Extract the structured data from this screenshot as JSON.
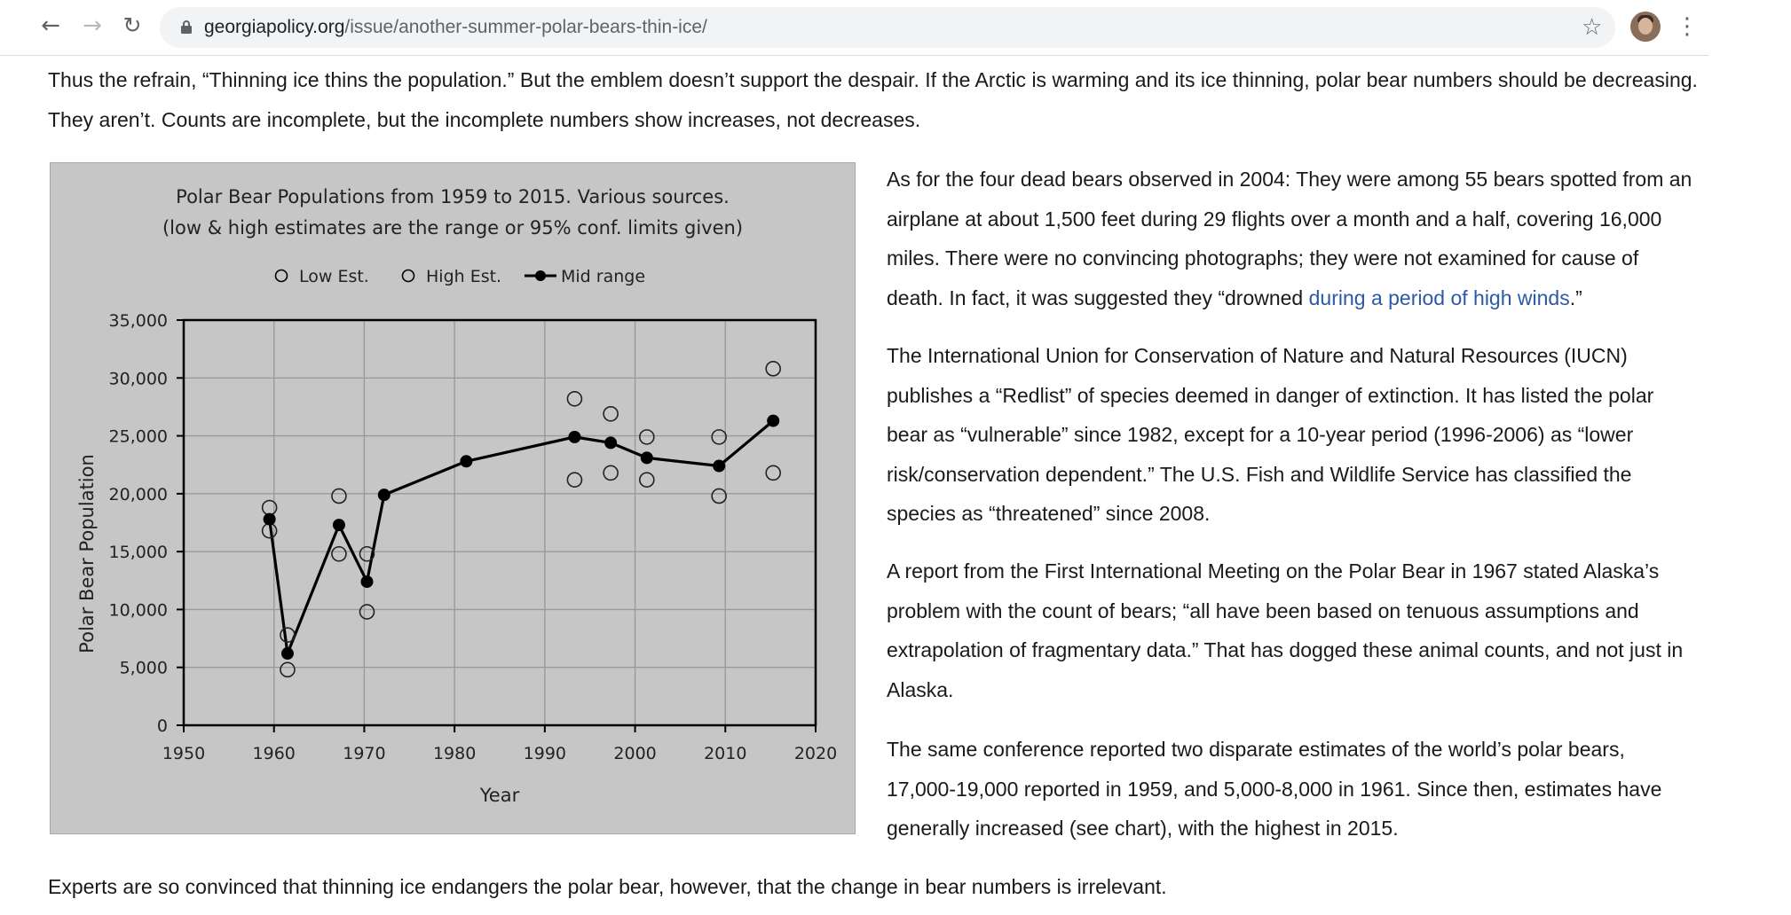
{
  "browser": {
    "url_host": "georgiapolicy.org",
    "url_path": "/issue/another-summer-polar-bears-thin-ice/",
    "icons": [
      "back-arrow-icon",
      "forward-arrow-icon",
      "reload-icon",
      "lock-icon",
      "star-icon",
      "avatar",
      "kebab-menu-icon"
    ]
  },
  "article": {
    "intro": "Thus the refrain, “Thinning ice thins the population.” But the emblem doesn’t support the despair. If the Arctic is warming and its ice thinning, polar bear numbers should be decreasing. They aren’t. Counts are incomplete, but the incomplete numbers show increases, not decreases.",
    "p1_text": "As for the four dead bears observed in 2004: They were among 55 bears spotted from an airplane at about 1,500 feet during 29 flights over a month and a half, covering 16,000 miles. There were no convincing photographs; they were not examined for cause of death. In fact, it was suggested they “drowned ",
    "p1_link": "during a period of high winds",
    "p1_end": ".”",
    "p2": "The International Union for Conservation of Nature and Natural Resources (IUCN) publishes a “Redlist” of species deemed in danger of extinction. It has listed the polar bear as “vulnerable” since 1982, except for a 10-year period (1996-2006) as “lower risk/conservation dependent.” The U.S. Fish and Wildlife Service has classified the species as “threatened” since 2008.",
    "p3": "A report from the First International Meeting on the Polar Bear in 1967 stated Alaska’s problem with the count of bears; “all have been based on tenuous assumptions and extrapolation of fragmentary data.” That has dogged these animal counts, and not just in Alaska.",
    "p4": "The same conference reported two disparate estimates of the world’s polar bears, 17,000-19,000 reported in 1959, and 5,000-8,000 in 1961. Since then, estimates have generally increased (see chart), with the highest in 2015.",
    "closing": "Experts are so convinced that thinning ice endangers the polar bear, however, that the change in bear numbers is irrelevant."
  },
  "chart_data": {
    "type": "line",
    "title": "Polar Bear Populations from 1959 to 2015. Various sources.",
    "subtitle": "(low & high estimates are the range or 95% conf. limits given)",
    "xlabel": "Year",
    "ylabel": "Polar Bear Population",
    "xlim": [
      1950,
      2020
    ],
    "ylim": [
      0,
      35000
    ],
    "x_ticks": [
      "1950",
      "1960",
      "1970",
      "1980",
      "1990",
      "2000",
      "2010",
      "2020"
    ],
    "y_ticks": [
      "0",
      "5,000",
      "10,000",
      "15,000",
      "20,000",
      "25,000",
      "30,000",
      "35,000"
    ],
    "grid": true,
    "legend": "top",
    "background": "#c6c6c6",
    "series": [
      {
        "name": "Low Est.",
        "marker": "open-circle",
        "points": [
          [
            1959.5,
            16800
          ],
          [
            1961.5,
            4800
          ],
          [
            1967.2,
            14800
          ],
          [
            1970.3,
            9800
          ],
          [
            1993.3,
            21200
          ],
          [
            1997.3,
            21800
          ],
          [
            2001.3,
            21200
          ],
          [
            2009.3,
            19800
          ],
          [
            2015.3,
            21800
          ]
        ]
      },
      {
        "name": "High Est.",
        "marker": "open-circle",
        "points": [
          [
            1959.5,
            18800
          ],
          [
            1961.5,
            7800
          ],
          [
            1967.2,
            19800
          ],
          [
            1970.3,
            14800
          ],
          [
            1993.3,
            28200
          ],
          [
            1997.3,
            26900
          ],
          [
            2001.3,
            24900
          ],
          [
            2009.3,
            24900
          ],
          [
            2015.3,
            30800
          ]
        ]
      },
      {
        "name": "Mid range",
        "marker": "filled-circle",
        "line": true,
        "points": [
          [
            1959.5,
            17800
          ],
          [
            1961.5,
            6200
          ],
          [
            1967.2,
            17300
          ],
          [
            1970.3,
            12400
          ],
          [
            1972.2,
            19900
          ],
          [
            1981.3,
            22800
          ],
          [
            1993.3,
            24900
          ],
          [
            1997.3,
            24400
          ],
          [
            2001.3,
            23100
          ],
          [
            2009.3,
            22400
          ],
          [
            2015.3,
            26300
          ]
        ]
      }
    ]
  }
}
